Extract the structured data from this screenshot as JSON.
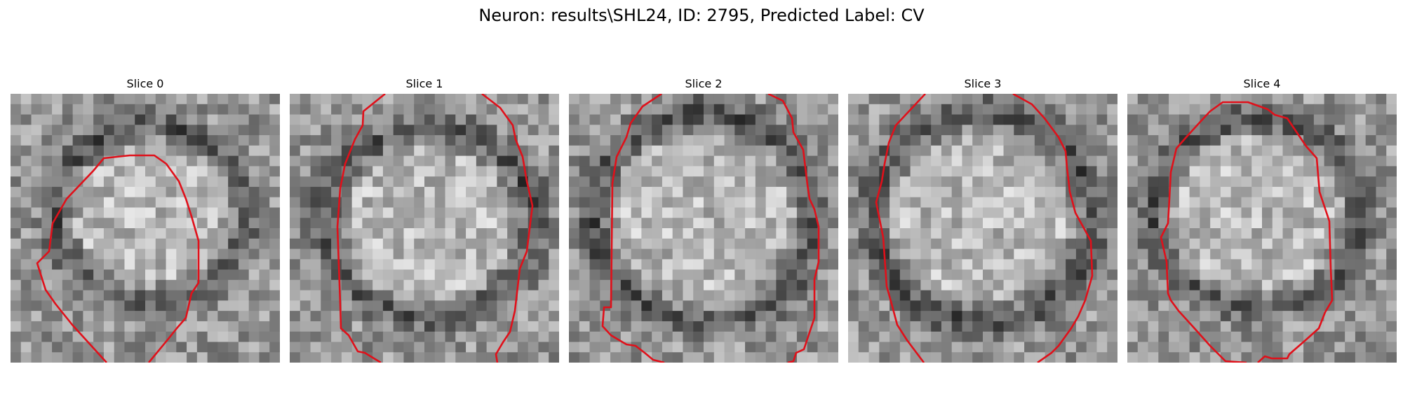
{
  "figure": {
    "title": "Neuron: results\\SHL24, ID: 2795, Predicted Label: CV"
  },
  "panels": [
    {
      "label": "Slice 0"
    },
    {
      "label": "Slice 1"
    },
    {
      "label": "Slice 2"
    },
    {
      "label": "Slice 3"
    },
    {
      "label": "Slice 4"
    }
  ],
  "colors": {
    "contour": "#e0101a",
    "background": "#ffffff"
  }
}
